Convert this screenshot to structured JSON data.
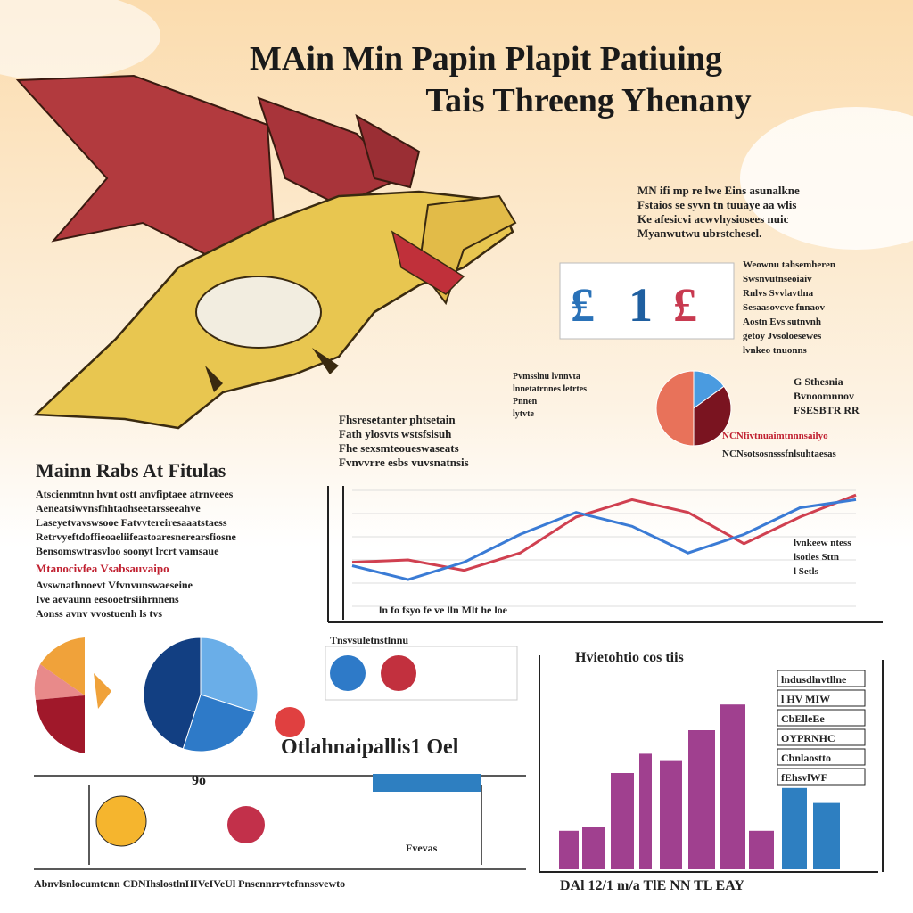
{
  "header": {
    "title": "MAin Min Papin  Plapit Patiuing",
    "subtitle": "Tais Threeng Yhenany"
  },
  "intro": {
    "lines": [
      "MN ifi mp re lwe Eins asunalkne",
      "Fstaios se syvn tn tuuaye aa wlis",
      "Ke afesicvi acwvhysiosees nuic",
      "Myanwutwu ubrstchesel."
    ]
  },
  "side_notes": {
    "lines": [
      "Weownu tahsemheren",
      "Swsnvutnseoiaiv",
      "Rnlvs Svvlavtlna",
      "Sesaasovcve fnnaov",
      "Aostn Evs sutnvnh",
      "getoy Jvsoloesewes",
      "lvnkeo tnuonns"
    ]
  },
  "mid_notes": {
    "lines": [
      "Fhsresetanter phtsetain",
      "Fath ylosvts wstsfsisuh",
      "Fhe sexsmteoueswaseats",
      "Fvnvvrre esbs vuvsnatnsis"
    ]
  },
  "pie_note": {
    "lines": [
      "G Sthesnia",
      "Bvnoomnnov",
      "FSESBTR RR"
    ],
    "red_line": "NCNfivtnuaimtnnnsailyo",
    "last_line": "NCNsotsosnsssfnlsuhtaesas"
  },
  "small_note": {
    "lines": [
      "Pvmsslnu lvnnvta",
      "lnnetatrnnes letrtes",
      "Pnnen",
      "lytvte"
    ]
  },
  "top_pie": {
    "values": [
      15,
      35,
      50
    ],
    "colors": [
      "#4a9be0",
      "#7a1420",
      "#e8725a"
    ]
  },
  "left_text": {
    "heading": "Mainn Rabs At Fitulas",
    "lines": [
      "Atscienmtnn hvnt ostt anvfiptaee atrnveees",
      "Aeneatsiwvnsfhhtaohseetarsseeahve",
      "Laseyetvavswsooe Fatvvtereiresaaatstaess",
      "Retrvyeftdoffieoaeliifeastoaresnerearsfiosne",
      "Bensomswtrasvloo soonyt lrcrt vamsaue"
    ],
    "red_line": "Mtanocivfea Vsabsauvaipo",
    "lines2": [
      "Avswnathnoevt Vfvnvunswaeseine",
      "Ive aevaunn eesooetrsiihrnnens",
      "Aonss avnv vvostuenh ls tvs"
    ]
  },
  "line_chart": {
    "ylim": [
      0,
      10
    ],
    "series": [
      {
        "color": "#d04050",
        "values": [
          3.8,
          4.0,
          3.1,
          4.6,
          7.7,
          9.2,
          8.1,
          5.4,
          7.7,
          9.6
        ]
      },
      {
        "color": "#3a7bd5",
        "values": [
          3.5,
          2.3,
          3.8,
          6.2,
          8.1,
          6.9,
          4.6,
          6.2,
          8.5,
          9.2
        ]
      }
    ],
    "labels": [
      "lvnkeew ntess",
      "lsotles Sttn",
      "l Setls"
    ],
    "axis_text": "ln   fo   fsyo   fe   ve   lln   Mlt   he   loe"
  },
  "mid_pie": {
    "values": [
      30,
      25,
      45
    ],
    "colors": [
      "#6aaee8",
      "#2e7ac8",
      "#123f82"
    ]
  },
  "dots_panel": {
    "title": "Tnsvsuletnstlnnu",
    "caption": "Otlahnaipallis1 Oel"
  },
  "bottom_panel": {
    "number": "9o",
    "label": "Fvevas",
    "footer": "Abnvlsnlocumtcnn    CDNIhslostlnHIVeIVeUl    Pnsennrrvtefnnssvewto"
  },
  "bar_chart": {
    "title": "Hvietohtio cos tiis",
    "ylim": [
      0,
      10
    ],
    "values": [
      1.8,
      2.0,
      4.5,
      5.4,
      5.1,
      6.5,
      7.7,
      1.8,
      3.8,
      3.1
    ],
    "colors": [
      "#a0408f",
      "#a0408f",
      "#a0408f",
      "#a0408f",
      "#a0408f",
      "#a0408f",
      "#a0408f",
      "#a0408f",
      "#2e7fc1",
      "#2e7fc1"
    ],
    "x_text": "DAl  12/1  m/a  TlE  NN  TL  EAY",
    "legend": [
      "lndusdlnvtllne",
      "l HV MIW",
      "CbElleEe",
      "OYPRNHC",
      "Cbnlaostto",
      "fEhsvlWF"
    ]
  }
}
